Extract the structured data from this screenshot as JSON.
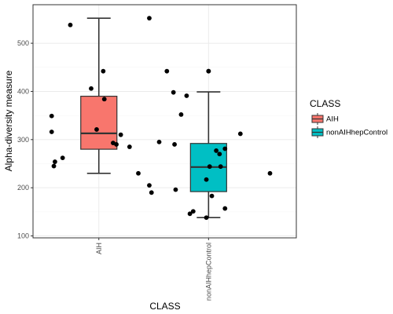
{
  "chart_data": {
    "type": "box",
    "xlabel": "CLASS",
    "ylabel": "Alpha-diversity measure",
    "categories": [
      "AIH",
      "nonAIHhepControl"
    ],
    "ylim": [
      96,
      580
    ],
    "yticks": [
      100,
      200,
      300,
      400,
      500
    ],
    "grid": true,
    "legend": {
      "title": "CLASS",
      "position": "right",
      "entries": [
        "AIH",
        "nonAIHhepControl"
      ]
    },
    "colors": {
      "AIH": "#F8766D",
      "nonAIHhepControl": "#00BFC4"
    },
    "boxes": [
      {
        "category": "AIH",
        "whisker_low": 230,
        "q1": 280,
        "median": 313,
        "q3": 390,
        "whisker_high": 552
      },
      {
        "category": "nonAIHhepControl",
        "whisker_low": 138,
        "q1": 192,
        "median": 243,
        "q3": 292,
        "whisker_high": 399
      }
    ],
    "outliers": [
      {
        "category": "nonAIHhepControl",
        "value": 442
      }
    ],
    "points": [
      {
        "category": "AIH",
        "value": 538,
        "jitter": -0.26
      },
      {
        "category": "AIH",
        "value": 552,
        "jitter": 0.46
      },
      {
        "category": "AIH",
        "value": 442,
        "jitter": 0.04
      },
      {
        "category": "AIH",
        "value": 406,
        "jitter": -0.07
      },
      {
        "category": "AIH",
        "value": 384,
        "jitter": 0.05
      },
      {
        "category": "AIH",
        "value": 349,
        "jitter": -0.43
      },
      {
        "category": "AIH",
        "value": 321,
        "jitter": -0.02
      },
      {
        "category": "AIH",
        "value": 316,
        "jitter": -0.43
      },
      {
        "category": "AIH",
        "value": 310,
        "jitter": 0.2
      },
      {
        "category": "AIH",
        "value": 293,
        "jitter": 0.13
      },
      {
        "category": "AIH",
        "value": 290,
        "jitter": 0.16
      },
      {
        "category": "AIH",
        "value": 285,
        "jitter": 0.28
      },
      {
        "category": "AIH",
        "value": 262,
        "jitter": -0.33
      },
      {
        "category": "AIH",
        "value": 254,
        "jitter": -0.4
      },
      {
        "category": "AIH",
        "value": 245,
        "jitter": -0.41
      },
      {
        "category": "AIH",
        "value": 230,
        "jitter": 0.36
      },
      {
        "category": "nonAIHhepControl",
        "value": 442,
        "jitter": -0.38
      },
      {
        "category": "nonAIHhepControl",
        "value": 442,
        "jitter": 0.0
      },
      {
        "category": "nonAIHhepControl",
        "value": 398,
        "jitter": -0.32
      },
      {
        "category": "nonAIHhepControl",
        "value": 391,
        "jitter": -0.2
      },
      {
        "category": "nonAIHhepControl",
        "value": 352,
        "jitter": -0.25
      },
      {
        "category": "nonAIHhepControl",
        "value": 312,
        "jitter": 0.29
      },
      {
        "category": "nonAIHhepControl",
        "value": 295,
        "jitter": -0.45
      },
      {
        "category": "nonAIHhepControl",
        "value": 290,
        "jitter": -0.31
      },
      {
        "category": "nonAIHhepControl",
        "value": 281,
        "jitter": 0.15
      },
      {
        "category": "nonAIHhepControl",
        "value": 277,
        "jitter": 0.07
      },
      {
        "category": "nonAIHhepControl",
        "value": 270,
        "jitter": 0.1
      },
      {
        "category": "nonAIHhepControl",
        "value": 244,
        "jitter": 0.01
      },
      {
        "category": "nonAIHhepControl",
        "value": 244,
        "jitter": 0.11
      },
      {
        "category": "nonAIHhepControl",
        "value": 230,
        "jitter": 0.56
      },
      {
        "category": "nonAIHhepControl",
        "value": 217,
        "jitter": -0.02
      },
      {
        "category": "nonAIHhepControl",
        "value": 205,
        "jitter": -0.54
      },
      {
        "category": "nonAIHhepControl",
        "value": 196,
        "jitter": -0.3
      },
      {
        "category": "nonAIHhepControl",
        "value": 190,
        "jitter": -0.52
      },
      {
        "category": "nonAIHhepControl",
        "value": 183,
        "jitter": 0.03
      },
      {
        "category": "nonAIHhepControl",
        "value": 157,
        "jitter": 0.15
      },
      {
        "category": "nonAIHhepControl",
        "value": 151,
        "jitter": -0.14
      },
      {
        "category": "nonAIHhepControl",
        "value": 146,
        "jitter": -0.17
      },
      {
        "category": "nonAIHhepControl",
        "value": 138,
        "jitter": -0.02
      }
    ]
  }
}
